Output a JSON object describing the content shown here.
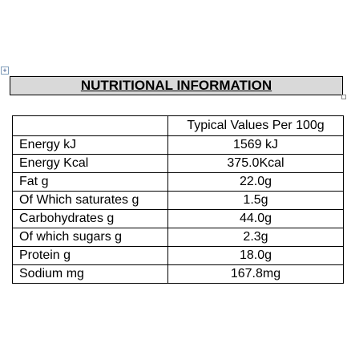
{
  "title": "NUTRITIONAL INFORMATION",
  "table": {
    "header": "Typical Values Per 100g",
    "rows": [
      [
        "Energy kJ",
        "1569 kJ"
      ],
      [
        "Energy Kcal",
        "375.0Kcal"
      ],
      [
        "Fat g",
        "22.0g"
      ],
      [
        "Of Which saturates g",
        "1.5g"
      ],
      [
        "Carbohydrates  g",
        "44.0g"
      ],
      [
        "Of which sugars  g",
        "2.3g"
      ],
      [
        "Protein  g",
        "18.0g"
      ],
      [
        "Sodium mg",
        "167.8mg"
      ]
    ]
  }
}
